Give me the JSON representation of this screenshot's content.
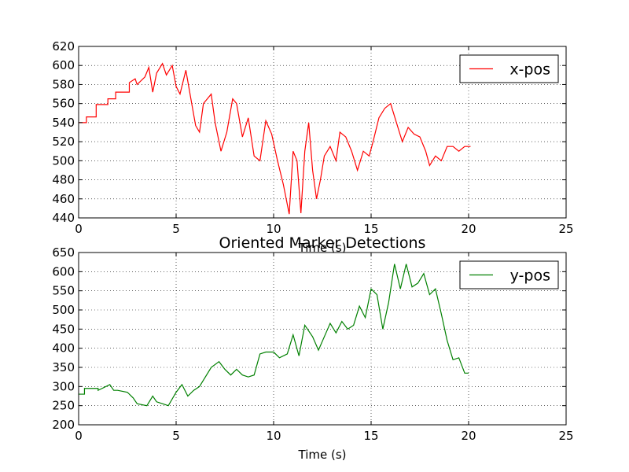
{
  "figure": {
    "title": "Oriented Marker Detections"
  },
  "chart_data": [
    {
      "type": "line",
      "xlabel": "Time (s)",
      "ylabel": "",
      "xlim": [
        0,
        25
      ],
      "ylim": [
        440,
        620
      ],
      "xticks": [
        0,
        5,
        10,
        15,
        20,
        25
      ],
      "yticks": [
        440,
        460,
        480,
        500,
        520,
        540,
        560,
        580,
        600,
        620
      ],
      "grid": true,
      "legend": "top-right",
      "series": [
        {
          "name": "x-pos",
          "color": "#ff0000",
          "x": [
            0,
            0.4,
            0.4,
            0.9,
            0.9,
            1.5,
            1.5,
            1.9,
            1.9,
            2.6,
            2.6,
            2.9,
            3.0,
            3.4,
            3.6,
            3.8,
            4.0,
            4.3,
            4.5,
            4.8,
            5.0,
            5.2,
            5.5,
            5.8,
            6.0,
            6.2,
            6.4,
            6.8,
            7.0,
            7.3,
            7.6,
            7.9,
            8.1,
            8.4,
            8.7,
            9.0,
            9.3,
            9.6,
            9.9,
            10.2,
            10.5,
            10.8,
            11.0,
            11.2,
            11.4,
            11.6,
            11.8,
            12.0,
            12.2,
            12.4,
            12.6,
            12.9,
            13.2,
            13.4,
            13.7,
            14.0,
            14.3,
            14.6,
            14.9,
            15.1,
            15.4,
            15.7,
            16.0,
            16.3,
            16.6,
            16.9,
            17.2,
            17.5,
            17.8,
            18.0,
            18.3,
            18.6,
            18.9,
            19.2,
            19.5,
            19.8,
            20.1
          ],
          "y": [
            540,
            540,
            546,
            546,
            559,
            559,
            565,
            565,
            572,
            572,
            582,
            586,
            580,
            588,
            598,
            572,
            592,
            602,
            590,
            600,
            578,
            570,
            595,
            560,
            537,
            530,
            560,
            570,
            540,
            510,
            530,
            565,
            560,
            525,
            545,
            505,
            500,
            542,
            528,
            500,
            475,
            444,
            510,
            500,
            445,
            510,
            540,
            490,
            460,
            480,
            505,
            515,
            500,
            530,
            525,
            510,
            490,
            510,
            505,
            520,
            545,
            555,
            560,
            540,
            520,
            535,
            528,
            525,
            510,
            495,
            505,
            500,
            515,
            515,
            510,
            515,
            515
          ]
        }
      ]
    },
    {
      "type": "line",
      "xlabel": "Time (s)",
      "ylabel": "",
      "xlim": [
        0,
        25
      ],
      "ylim": [
        200,
        650
      ],
      "xticks": [
        0,
        5,
        10,
        15,
        20,
        25
      ],
      "yticks": [
        200,
        250,
        300,
        350,
        400,
        450,
        500,
        550,
        600,
        650
      ],
      "grid": true,
      "legend": "top-right",
      "series": [
        {
          "name": "y-pos",
          "color": "#008000",
          "x": [
            0,
            0.3,
            0.3,
            1.0,
            1.0,
            1.6,
            1.8,
            2.0,
            2.5,
            2.8,
            3.0,
            3.5,
            3.8,
            4.0,
            4.3,
            4.6,
            5.0,
            5.3,
            5.6,
            5.9,
            6.2,
            6.5,
            6.8,
            7.2,
            7.5,
            7.8,
            8.1,
            8.4,
            8.7,
            9.0,
            9.3,
            9.6,
            10.0,
            10.3,
            10.7,
            11.0,
            11.3,
            11.6,
            12.0,
            12.3,
            12.6,
            12.9,
            13.2,
            13.5,
            13.8,
            14.1,
            14.4,
            14.7,
            15.0,
            15.3,
            15.6,
            15.9,
            16.2,
            16.5,
            16.8,
            17.1,
            17.4,
            17.7,
            18.0,
            18.3,
            18.6,
            18.9,
            19.2,
            19.5,
            19.8,
            20.0
          ],
          "y": [
            280,
            280,
            295,
            295,
            290,
            305,
            290,
            290,
            285,
            270,
            255,
            250,
            275,
            260,
            255,
            250,
            285,
            305,
            275,
            290,
            300,
            325,
            350,
            365,
            345,
            330,
            345,
            330,
            325,
            330,
            385,
            390,
            390,
            375,
            385,
            435,
            380,
            460,
            430,
            395,
            430,
            465,
            440,
            470,
            450,
            460,
            510,
            480,
            555,
            540,
            450,
            520,
            620,
            555,
            620,
            560,
            570,
            595,
            540,
            555,
            490,
            420,
            370,
            375,
            335,
            335
          ]
        }
      ]
    }
  ]
}
